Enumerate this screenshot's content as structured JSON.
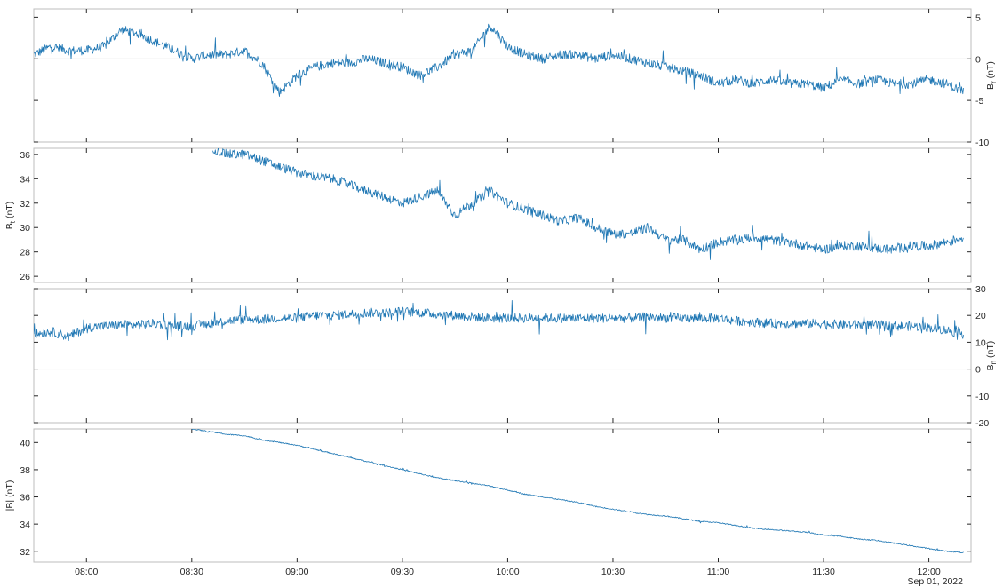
{
  "chart_data": [
    {
      "type": "line",
      "panel": "Br",
      "ylabel_main": "B",
      "ylabel_sub": "r",
      "ylabel_unit": " (nT)",
      "ylabel_side": "right",
      "ylim": [
        -10,
        6
      ],
      "yticks": [
        -10,
        -5,
        0,
        5
      ],
      "ytick_labels": [
        "-10",
        "-5",
        "0",
        "5"
      ],
      "zero_line": true,
      "grid": false,
      "series": [
        {
          "color": "#1f77b4",
          "x": [
            "07:45",
            "07:50",
            "07:55",
            "08:00",
            "08:05",
            "08:10",
            "08:15",
            "08:20",
            "08:25",
            "08:30",
            "08:35",
            "08:40",
            "08:45",
            "08:50",
            "08:55",
            "09:00",
            "09:05",
            "09:10",
            "09:15",
            "09:20",
            "09:25",
            "09:30",
            "09:35",
            "09:40",
            "09:45",
            "09:50",
            "09:55",
            "10:00",
            "10:05",
            "10:10",
            "10:15",
            "10:20",
            "10:25",
            "10:30",
            "10:35",
            "10:40",
            "10:45",
            "10:50",
            "10:55",
            "11:00",
            "11:05",
            "11:10",
            "11:15",
            "11:20",
            "11:25",
            "11:30",
            "11:35",
            "11:40",
            "11:45",
            "11:50",
            "11:55",
            "12:00",
            "12:05",
            "12:10"
          ],
          "y": [
            0.5,
            1.5,
            1,
            1,
            1.5,
            3.5,
            3,
            2,
            1,
            0,
            0.5,
            0.5,
            1,
            -0.5,
            -4,
            -2,
            -1,
            -0.5,
            -0.5,
            0,
            -0.5,
            -1,
            -2,
            -1,
            0.5,
            1,
            4,
            1.5,
            0.5,
            0,
            0.5,
            0.5,
            0,
            0.5,
            0,
            -0.5,
            -1,
            -1.5,
            -2,
            -3,
            -2.5,
            -3,
            -2.5,
            -3,
            -3,
            -3.5,
            -2.5,
            -3,
            -2.5,
            -3,
            -3,
            -2.5,
            -3,
            -4
          ]
        }
      ]
    },
    {
      "type": "line",
      "panel": "Bt",
      "ylabel_main": "B",
      "ylabel_sub": "t",
      "ylabel_unit": " (nT)",
      "ylabel_side": "left",
      "ylim": [
        25.5,
        36.5
      ],
      "yticks": [
        26,
        28,
        30,
        32,
        34,
        36
      ],
      "ytick_labels": [
        "26",
        "28",
        "30",
        "32",
        "34",
        "36"
      ],
      "grid": false,
      "series": [
        {
          "color": "#1f77b4",
          "x": [
            "08:36",
            "08:40",
            "08:45",
            "08:50",
            "08:55",
            "09:00",
            "09:05",
            "09:10",
            "09:15",
            "09:20",
            "09:25",
            "09:30",
            "09:35",
            "09:40",
            "09:45",
            "09:50",
            "09:55",
            "10:00",
            "10:05",
            "10:10",
            "10:15",
            "10:20",
            "10:25",
            "10:30",
            "10:35",
            "10:40",
            "10:45",
            "10:50",
            "10:55",
            "11:00",
            "11:05",
            "11:10",
            "11:15",
            "11:20",
            "11:25",
            "11:30",
            "11:35",
            "11:40",
            "11:45",
            "11:50",
            "11:55",
            "12:00",
            "12:05",
            "12:10"
          ],
          "y": [
            36.5,
            36,
            36,
            35.5,
            35,
            34.5,
            34.2,
            34,
            33.5,
            33,
            32.5,
            32,
            32.5,
            33,
            31,
            32,
            33,
            32,
            31.5,
            31,
            30.5,
            30.8,
            30,
            29.5,
            29.5,
            30,
            29,
            29,
            28.2,
            28.8,
            29,
            29.2,
            29,
            28.8,
            28.5,
            28.2,
            28.5,
            28.5,
            28.3,
            28.2,
            28.5,
            28.5,
            28.8,
            29.2
          ]
        }
      ]
    },
    {
      "type": "line",
      "panel": "Bn",
      "ylabel_main": "B",
      "ylabel_sub": "n",
      "ylabel_unit": " (nT)",
      "ylabel_side": "right",
      "ylim": [
        -20,
        30
      ],
      "yticks": [
        -20,
        -10,
        0,
        10,
        20,
        30
      ],
      "ytick_labels": [
        "-20",
        "-10",
        "0",
        "10",
        "20",
        "30"
      ],
      "zero_line": true,
      "grid": false,
      "series": [
        {
          "color": "#1f77b4",
          "x": [
            "07:45",
            "07:50",
            "07:55",
            "08:00",
            "08:05",
            "08:10",
            "08:15",
            "08:20",
            "08:25",
            "08:30",
            "08:35",
            "08:40",
            "08:45",
            "08:50",
            "08:55",
            "09:00",
            "09:05",
            "09:10",
            "09:15",
            "09:20",
            "09:25",
            "09:30",
            "09:35",
            "09:40",
            "09:45",
            "09:50",
            "09:55",
            "10:00",
            "10:05",
            "10:10",
            "10:15",
            "10:20",
            "10:25",
            "10:30",
            "10:35",
            "10:40",
            "10:45",
            "10:50",
            "10:55",
            "11:00",
            "11:05",
            "11:10",
            "11:15",
            "11:20",
            "11:25",
            "11:30",
            "11:35",
            "11:40",
            "11:45",
            "11:50",
            "11:55",
            "12:00",
            "12:05",
            "12:10"
          ],
          "y": [
            13,
            14,
            12,
            15.5,
            16,
            16.5,
            16.5,
            17,
            16,
            16,
            17,
            18,
            18.5,
            18.5,
            19,
            19,
            20,
            20,
            20.5,
            21,
            21,
            21.5,
            21,
            20.5,
            20,
            19.5,
            19,
            19,
            19,
            19,
            19,
            19,
            19,
            19,
            19,
            19.5,
            19,
            19,
            19,
            19,
            18,
            17.5,
            17,
            17,
            17,
            17,
            16.5,
            16.5,
            16.5,
            16,
            16,
            15.5,
            14.5,
            13
          ]
        }
      ]
    },
    {
      "type": "line",
      "panel": "|B|",
      "ylabel_main": "|B| (nT)",
      "ylabel_side": "left",
      "ylim": [
        31.2,
        41
      ],
      "yticks": [
        32,
        34,
        36,
        38,
        40
      ],
      "ytick_labels": [
        "32",
        "34",
        "36",
        "38",
        "40"
      ],
      "grid": false,
      "series": [
        {
          "color": "#1f77b4",
          "x": [
            "08:30",
            "08:35",
            "08:40",
            "08:45",
            "08:50",
            "08:55",
            "09:00",
            "09:05",
            "09:10",
            "09:15",
            "09:20",
            "09:25",
            "09:30",
            "09:35",
            "09:40",
            "09:45",
            "09:50",
            "09:55",
            "10:00",
            "10:05",
            "10:10",
            "10:15",
            "10:20",
            "10:25",
            "10:30",
            "10:35",
            "10:40",
            "10:45",
            "10:50",
            "10:55",
            "11:00",
            "11:05",
            "11:10",
            "11:15",
            "11:20",
            "11:25",
            "11:30",
            "11:35",
            "11:40",
            "11:45",
            "11:50",
            "11:55",
            "12:00",
            "12:05",
            "12:10"
          ],
          "y": [
            41,
            40.8,
            40.6,
            40.5,
            40.2,
            40,
            39.8,
            39.5,
            39.2,
            38.9,
            38.6,
            38.3,
            38,
            37.7,
            37.4,
            37.2,
            37,
            36.8,
            36.5,
            36.2,
            36,
            35.8,
            35.6,
            35.3,
            35.1,
            34.9,
            34.7,
            34.6,
            34.4,
            34.2,
            34.1,
            33.9,
            33.7,
            33.6,
            33.5,
            33.4,
            33.2,
            33.1,
            32.9,
            32.8,
            32.6,
            32.4,
            32.2,
            32,
            31.9
          ]
        }
      ]
    }
  ],
  "x_axis": {
    "xlim": [
      "07:45",
      "12:12"
    ],
    "tick_labels": [
      "08:00",
      "08:30",
      "09:00",
      "09:30",
      "10:00",
      "10:30",
      "11:00",
      "11:30",
      "12:00"
    ],
    "date_label": "Sep 01, 2022"
  }
}
